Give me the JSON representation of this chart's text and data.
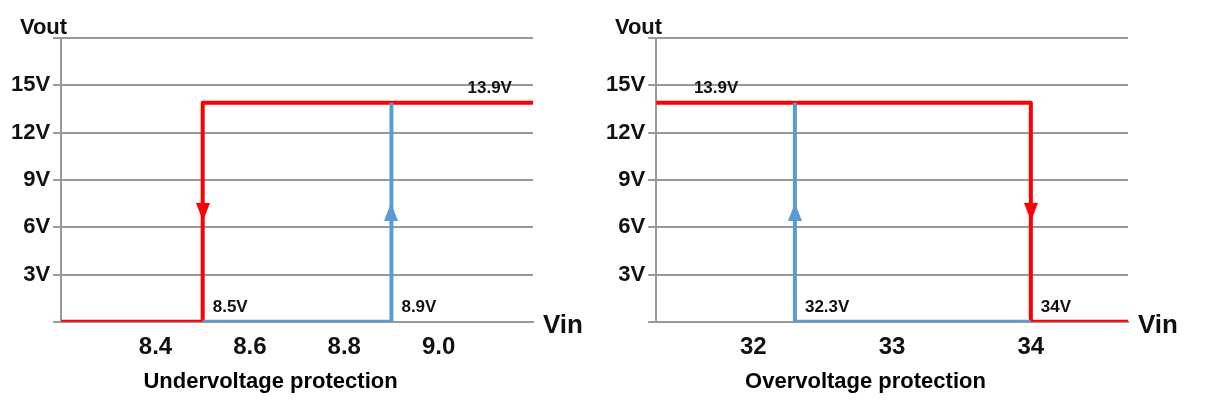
{
  "chart_data": [
    {
      "type": "line",
      "title": "Undervoltage protection",
      "xlabel": "Vin",
      "ylabel": "Vout",
      "xlim": [
        8.2,
        9.2
      ],
      "xticks": [
        8.4,
        8.6,
        8.8,
        {
          "value": 9,
          "label": "9.0"
        }
      ],
      "ylim": [
        0,
        18
      ],
      "yticks": [
        {
          "value": 0,
          "label": null
        },
        {
          "value": 3,
          "label": "3V"
        },
        {
          "value": 6,
          "label": "6V"
        },
        {
          "value": 9,
          "label": "9V"
        },
        {
          "value": 12,
          "label": "12V"
        },
        {
          "value": 15,
          "label": "15V"
        },
        {
          "value": 18,
          "label": null
        }
      ],
      "grid": "y",
      "legend": false,
      "marker": "none",
      "line_style": "solid",
      "series": [
        {
          "color": "#5b9bd5",
          "x": [
            8.5,
            8.9,
            8.9
          ],
          "values": [
            0,
            0,
            13.9
          ]
        },
        {
          "color": "#ff0000",
          "x": [
            9.2,
            8.5,
            8.5,
            8.2
          ],
          "values": [
            13.9,
            13.9,
            0,
            0
          ]
        }
      ],
      "annotations": [
        {
          "text": "13.9V",
          "x": 9.04,
          "y": 13.9
        },
        {
          "text": "8.5V",
          "x": 8.5,
          "y": 0
        },
        {
          "text": "8.9V",
          "x": 8.9,
          "y": 0
        }
      ]
    },
    {
      "type": "line",
      "title": "Overvoltage protection",
      "xlabel": "Vin",
      "ylabel": "Vout",
      "xlim": [
        31.3,
        34.7
      ],
      "xticks": [
        32,
        33,
        34
      ],
      "ylim": [
        0,
        18
      ],
      "yticks": [
        {
          "value": 0,
          "label": null
        },
        {
          "value": 3,
          "label": "3V"
        },
        {
          "value": 6,
          "label": "6V"
        },
        {
          "value": 9,
          "label": "9V"
        },
        {
          "value": 12,
          "label": "12V"
        },
        {
          "value": 15,
          "label": "15V"
        },
        {
          "value": 18,
          "label": null
        }
      ],
      "grid": "y",
      "legend": false,
      "marker": "none",
      "line_style": "solid",
      "series": [
        {
          "color": "#5b9bd5",
          "x": [
            34,
            32.3,
            32.3
          ],
          "values": [
            0,
            0,
            13.9
          ]
        },
        {
          "color": "#ff0000",
          "x": [
            31.3,
            34,
            34,
            34.7
          ],
          "values": [
            13.9,
            13.9,
            0,
            0
          ]
        }
      ],
      "annotations": [
        {
          "text": "13.9V",
          "x": 31.5,
          "y": 13.9
        },
        {
          "text": "32.3V",
          "x": 32.3,
          "y": 0
        },
        {
          "text": "34V",
          "x": 34,
          "y": 0
        }
      ]
    }
  ]
}
